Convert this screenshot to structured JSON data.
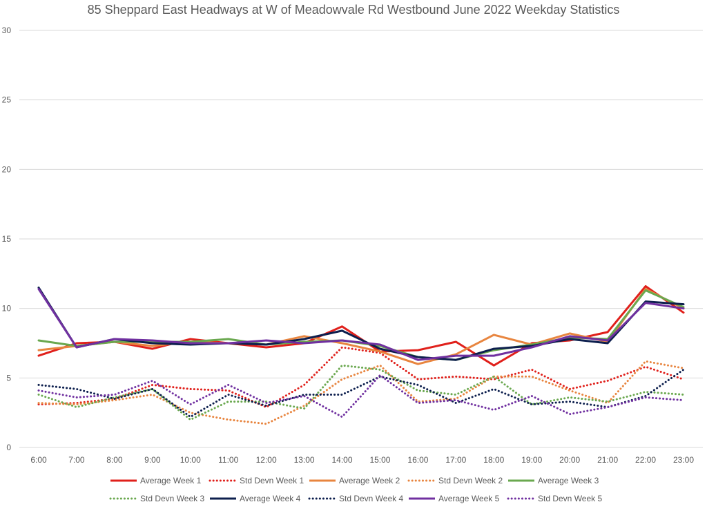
{
  "chart_data": {
    "type": "line",
    "title": "85 Sheppard East Headways at W of Meadowvale Rd Westbound June 2022 Weekday Statistics",
    "xlabel": "",
    "ylabel": "",
    "ylim": [
      0,
      30
    ],
    "yticks": [
      0,
      5,
      10,
      15,
      20,
      25,
      30
    ],
    "grid": true,
    "legend_position": "bottom",
    "categories": [
      "6:00",
      "7:00",
      "8:00",
      "9:00",
      "10:00",
      "11:00",
      "12:00",
      "13:00",
      "14:00",
      "15:00",
      "16:00",
      "17:00",
      "18:00",
      "19:00",
      "20:00",
      "21:00",
      "22:00",
      "23:00"
    ],
    "series": [
      {
        "name": "Average Week 1",
        "style": "solid",
        "color": "#e0201b",
        "values": [
          6.6,
          7.5,
          7.6,
          7.1,
          7.8,
          7.5,
          7.2,
          7.5,
          8.7,
          6.9,
          7.0,
          7.6,
          5.9,
          7.5,
          7.7,
          8.3,
          11.6,
          9.7
        ]
      },
      {
        "name": "Std Devn Week 1",
        "style": "dotted",
        "color": "#e0201b",
        "values": [
          3.1,
          3.2,
          3.5,
          4.5,
          4.2,
          4.1,
          2.9,
          4.5,
          7.2,
          6.8,
          4.9,
          5.1,
          4.9,
          5.6,
          4.2,
          4.8,
          5.8,
          4.9
        ]
      },
      {
        "name": "Average Week 2",
        "style": "solid",
        "color": "#e8853f",
        "values": [
          7.0,
          7.3,
          7.6,
          7.3,
          7.6,
          7.5,
          7.4,
          8.0,
          7.5,
          6.9,
          6.0,
          6.7,
          8.1,
          7.4,
          8.2,
          7.6,
          11.4,
          10.0
        ]
      },
      {
        "name": "Std Devn Week 2",
        "style": "dotted",
        "color": "#e8853f",
        "values": [
          3.2,
          3.1,
          3.4,
          3.8,
          2.5,
          2.0,
          1.7,
          3.0,
          4.9,
          5.9,
          3.3,
          3.5,
          5.1,
          5.1,
          4.1,
          3.2,
          6.2,
          5.7
        ]
      },
      {
        "name": "Average Week 3",
        "style": "solid",
        "color": "#6aa84f",
        "values": [
          7.7,
          7.3,
          7.6,
          7.6,
          7.6,
          7.8,
          7.4,
          7.6,
          7.7,
          7.3,
          6.5,
          6.3,
          7.0,
          7.4,
          7.9,
          7.8,
          11.3,
          10.1
        ]
      },
      {
        "name": "Std Devn Week 3",
        "style": "dotted",
        "color": "#6aa84f",
        "values": [
          3.8,
          2.9,
          3.6,
          4.2,
          2.0,
          3.3,
          3.3,
          2.8,
          5.9,
          5.6,
          4.1,
          3.8,
          5.1,
          3.1,
          3.6,
          3.3,
          4.0,
          3.8
        ]
      },
      {
        "name": "Average Week 4",
        "style": "solid",
        "color": "#0d1f4e",
        "values": [
          11.5,
          7.2,
          7.8,
          7.5,
          7.4,
          7.5,
          7.4,
          7.8,
          8.4,
          7.1,
          6.5,
          6.3,
          7.1,
          7.3,
          7.8,
          7.5,
          10.5,
          10.3
        ]
      },
      {
        "name": "Std Devn Week 4",
        "style": "dotted",
        "color": "#0d1f4e",
        "values": [
          4.5,
          4.2,
          3.5,
          4.2,
          2.2,
          3.8,
          3.0,
          3.8,
          3.8,
          5.1,
          4.5,
          3.2,
          4.2,
          3.1,
          3.3,
          2.9,
          3.7,
          5.6
        ]
      },
      {
        "name": "Average Week 5",
        "style": "solid",
        "color": "#7030a0",
        "values": [
          11.4,
          7.2,
          7.8,
          7.7,
          7.5,
          7.5,
          7.7,
          7.5,
          7.7,
          7.4,
          6.3,
          6.6,
          6.6,
          7.2,
          8.0,
          7.7,
          10.4,
          10.0
        ]
      },
      {
        "name": "Std Devn Week 5",
        "style": "dotted",
        "color": "#7030a0",
        "values": [
          4.1,
          3.6,
          3.8,
          4.8,
          3.1,
          4.5,
          3.2,
          3.7,
          2.2,
          5.2,
          3.2,
          3.4,
          2.7,
          3.7,
          2.4,
          2.9,
          3.6,
          3.4
        ]
      }
    ]
  }
}
